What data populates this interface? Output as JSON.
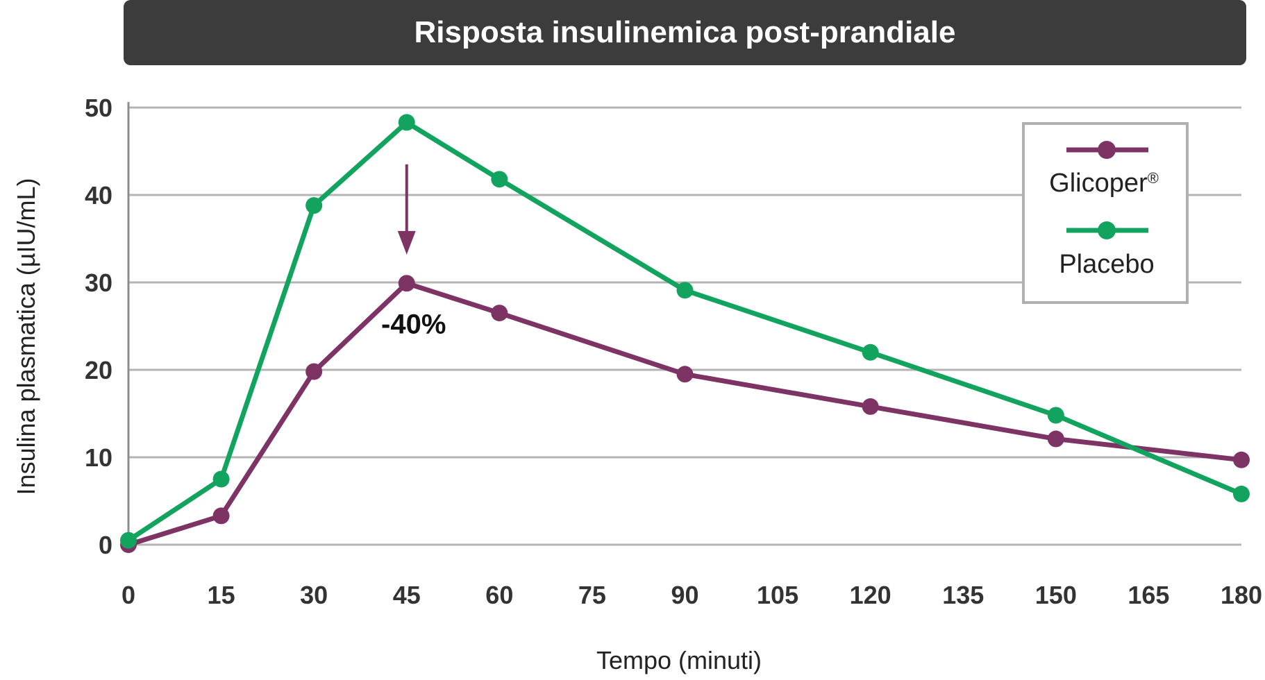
{
  "chart_data": {
    "type": "line",
    "title": "Risposta insulinemica post-prandiale",
    "xlabel": "Tempo (minuti)",
    "ylabel": "Insulina plasmatica (µIU/mL)",
    "x_ticks": [
      "0",
      "15",
      "30",
      "45",
      "60",
      "75",
      "90",
      "105",
      "120",
      "135",
      "150",
      "165",
      "180"
    ],
    "y_ticks": [
      "0",
      "10",
      "20",
      "30",
      "40",
      "50"
    ],
    "xlim": [
      0,
      180
    ],
    "ylim": [
      0,
      50
    ],
    "grid": true,
    "legend_position": "top-right",
    "series": [
      {
        "name": "Glicoper",
        "name_suffix": "®",
        "color": "#7e3365",
        "x": [
          0,
          15,
          30,
          45,
          60,
          90,
          120,
          150,
          180
        ],
        "y": [
          0,
          3.3,
          19.8,
          29.9,
          26.5,
          19.5,
          15.8,
          12.1,
          9.7
        ]
      },
      {
        "name": "Placebo",
        "color": "#12a45e",
        "x": [
          0,
          15,
          30,
          45,
          60,
          90,
          120,
          150,
          180
        ],
        "y": [
          0.5,
          7.5,
          38.8,
          48.3,
          41.8,
          29.1,
          22,
          14.8,
          5.8
        ]
      }
    ],
    "annotations": [
      {
        "text": "-40%",
        "x": 45,
        "y": 29.9,
        "arrow_from_y": 43.5,
        "arrow_to_y": 33.5,
        "color": "#7e3365"
      }
    ]
  }
}
